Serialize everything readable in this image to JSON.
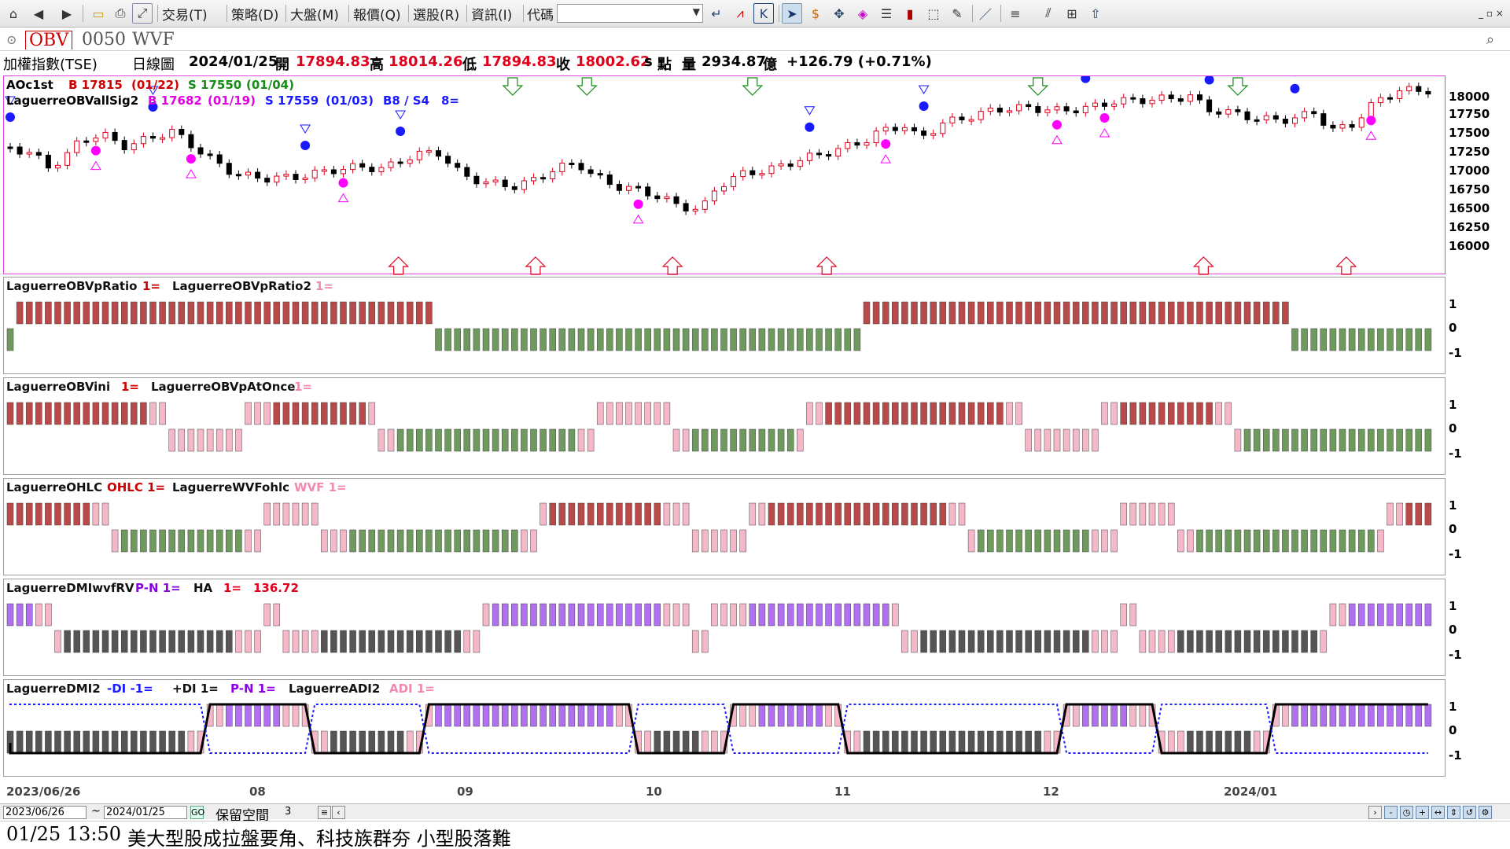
{
  "toolbar": {
    "menus": [
      "交易(T)",
      "策略(D)",
      "大盤(M)",
      "報價(Q)",
      "選股(R)",
      "資訊(I)",
      "代碼"
    ],
    "code_value": ""
  },
  "tabs": [
    "OBV",
    "0050",
    "WVF"
  ],
  "active_tab": "OBV",
  "info": {
    "symbol": "加權指數(TSE)",
    "period": "日線圖",
    "date": "2024/01/25",
    "open_label": "開",
    "open": "17894.83",
    "high_label": "高",
    "high": "18014.26",
    "low_label": "低",
    "low": "17894.83",
    "close_label": "收",
    "close": "18002.62",
    "s_label": "s",
    "points_label": "點",
    "vol_label": "量",
    "vol": "2934.87",
    "vol_unit": "億",
    "change": "+126.79 (+0.71%)"
  },
  "main_panel": {
    "line1": {
      "name": "AOc1st",
      "b": "B 17815",
      "b_date": "(01/22)",
      "s": "S 17550",
      "s_date": "(01/04)"
    },
    "line2": {
      "name": "LaguerreOBVallSig2",
      "b": "B 17682",
      "b_date": "(01/19)",
      "s": "S 17559",
      "s_date": "(01/03)",
      "bs": "B8 / S4",
      "n": "8="
    },
    "y_ticks": [
      "18000",
      "17750",
      "17500",
      "17250",
      "17000",
      "16750",
      "16500",
      "16250",
      "16000"
    ]
  },
  "sub_panels": [
    {
      "labels": [
        {
          "t": "LaguerreOBVpRatio",
          "c": "#111"
        },
        {
          "t": "1=",
          "c": "#c00"
        },
        {
          "t": "LaguerreOBVpRatio2",
          "c": "#111"
        },
        {
          "t": "1=",
          "c": "#f08ab0"
        }
      ],
      "y_ticks": [
        "1",
        "0",
        "-1"
      ]
    },
    {
      "labels": [
        {
          "t": "LaguerreOBVini",
          "c": "#111"
        },
        {
          "t": "1=",
          "c": "#c00"
        },
        {
          "t": "LaguerreOBVpAtOnce",
          "c": "#111"
        },
        {
          "t": "1=",
          "c": "#f08ab0"
        }
      ],
      "y_ticks": [
        "1",
        "0",
        "-1"
      ]
    },
    {
      "labels": [
        {
          "t": "LaguerreOHLC",
          "c": "#111"
        },
        {
          "t": "OHLC 1=",
          "c": "#c00"
        },
        {
          "t": "LaguerreWVFohlc",
          "c": "#111"
        },
        {
          "t": "WVF 1=",
          "c": "#f08ab0"
        }
      ],
      "y_ticks": [
        "1",
        "0",
        "-1"
      ]
    },
    {
      "labels": [
        {
          "t": "LaguerreDMIwvfRV",
          "c": "#111"
        },
        {
          "t": "P-N 1=",
          "c": "#8a00e6"
        },
        {
          "t": "HA",
          "c": "#111"
        },
        {
          "t": "1=",
          "c": "#e0001b"
        },
        {
          "t": "136.72",
          "c": "#e0001b"
        }
      ],
      "y_ticks": [
        "1",
        "0",
        "-1"
      ]
    },
    {
      "labels": [
        {
          "t": "LaguerreDMI2",
          "c": "#111"
        },
        {
          "t": "-DI -1=",
          "c": "#1a1aff"
        },
        {
          "t": "+DI 1=",
          "c": "#111"
        },
        {
          "t": "P-N 1=",
          "c": "#8a00e6"
        },
        {
          "t": "LaguerreADI2",
          "c": "#111"
        },
        {
          "t": "ADI 1=",
          "c": "#f08ab0"
        }
      ],
      "y_ticks": [
        "1",
        "0",
        "-1"
      ]
    }
  ],
  "x_axis": [
    "2023/06/26",
    "08",
    "09",
    "10",
    "11",
    "12",
    "2024/01"
  ],
  "bottom": {
    "from_date": "2023/06/26",
    "to_date": "2024/01/25",
    "tilde": "~",
    "keep_space_label": "保留空間",
    "keep_space_value": "3"
  },
  "news": {
    "time": "01/25 13:50",
    "headline": "美大型股成拉盤要角、科技族群夯 小型股落難"
  },
  "colors": {
    "up": "#e0001b",
    "down": "#000000",
    "bar_red": "#b94a4a",
    "bar_green": "#6e9a5e",
    "bar_purple": "#b070f0",
    "bar_gray": "#555555",
    "panel_border_main": "#e040e0"
  }
}
